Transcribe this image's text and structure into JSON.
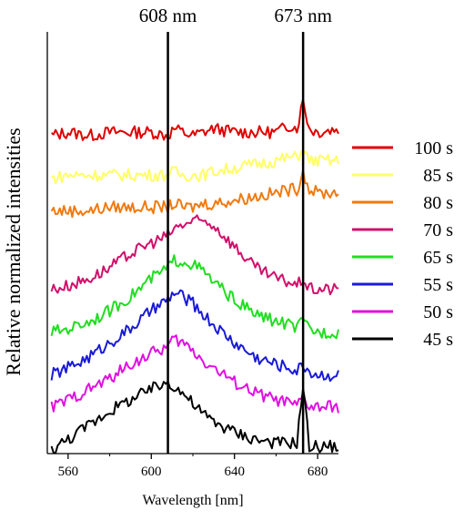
{
  "chart_data": {
    "type": "line",
    "xlabel": "Wavelength [nm]",
    "ylabel": "Relative normalized intensities",
    "xlim": [
      550,
      690
    ],
    "x_ticks": [
      560,
      600,
      640,
      680
    ],
    "y_ticks": [],
    "grid": false,
    "legend_position": "right",
    "annotations": [
      {
        "label": "608 nm",
        "x": 608
      },
      {
        "label": "673 nm",
        "x": 673
      }
    ],
    "x": [
      552,
      560,
      570,
      580,
      590,
      600,
      608,
      611,
      615,
      620,
      625,
      630,
      640,
      650,
      660,
      667,
      670,
      673,
      676,
      680,
      690
    ],
    "series": [
      {
        "name": "100 s",
        "color": "#e00000",
        "values": [
          0.88,
          0.89,
          0.88,
          0.89,
          0.89,
          0.89,
          0.88,
          0.9,
          0.89,
          0.88,
          0.89,
          0.9,
          0.89,
          0.89,
          0.89,
          0.91,
          0.9,
          0.98,
          0.9,
          0.89,
          0.9
        ]
      },
      {
        "name": "85 s",
        "color": "#ffff66",
        "values": [
          0.76,
          0.77,
          0.77,
          0.77,
          0.77,
          0.77,
          0.77,
          0.78,
          0.77,
          0.77,
          0.77,
          0.78,
          0.79,
          0.8,
          0.81,
          0.82,
          0.82,
          0.84,
          0.81,
          0.81,
          0.81
        ]
      },
      {
        "name": "80 s",
        "color": "#f07a10",
        "values": [
          0.67,
          0.67,
          0.67,
          0.68,
          0.68,
          0.68,
          0.68,
          0.69,
          0.68,
          0.68,
          0.69,
          0.69,
          0.7,
          0.71,
          0.72,
          0.73,
          0.73,
          0.78,
          0.73,
          0.72,
          0.72
        ]
      },
      {
        "name": "70 s",
        "color": "#d0106a",
        "values": [
          0.45,
          0.46,
          0.48,
          0.51,
          0.55,
          0.58,
          0.6,
          0.62,
          0.63,
          0.64,
          0.64,
          0.63,
          0.57,
          0.51,
          0.48,
          0.47,
          0.46,
          0.48,
          0.45,
          0.45,
          0.45
        ]
      },
      {
        "name": "65 s",
        "color": "#22dd22",
        "values": [
          0.33,
          0.34,
          0.36,
          0.39,
          0.43,
          0.48,
          0.51,
          0.53,
          0.53,
          0.52,
          0.5,
          0.47,
          0.42,
          0.38,
          0.36,
          0.35,
          0.34,
          0.36,
          0.34,
          0.33,
          0.33
        ]
      },
      {
        "name": "55 s",
        "color": "#1a1ad6",
        "values": [
          0.21,
          0.23,
          0.26,
          0.3,
          0.34,
          0.39,
          0.42,
          0.44,
          0.43,
          0.41,
          0.38,
          0.35,
          0.3,
          0.26,
          0.24,
          0.23,
          0.22,
          0.24,
          0.22,
          0.21,
          0.21
        ]
      },
      {
        "name": "50 s",
        "color": "#e010e0",
        "values": [
          0.12,
          0.14,
          0.17,
          0.2,
          0.24,
          0.27,
          0.29,
          0.31,
          0.3,
          0.28,
          0.25,
          0.23,
          0.19,
          0.16,
          0.14,
          0.13,
          0.12,
          0.15,
          0.12,
          0.12,
          0.12
        ]
      },
      {
        "name": "45 s",
        "color": "#000000",
        "values": [
          0.0,
          0.03,
          0.07,
          0.11,
          0.14,
          0.17,
          0.19,
          0.18,
          0.16,
          0.13,
          0.1,
          0.08,
          0.05,
          0.03,
          0.02,
          0.02,
          0.02,
          0.18,
          0.01,
          0.01,
          0.01
        ]
      }
    ]
  }
}
